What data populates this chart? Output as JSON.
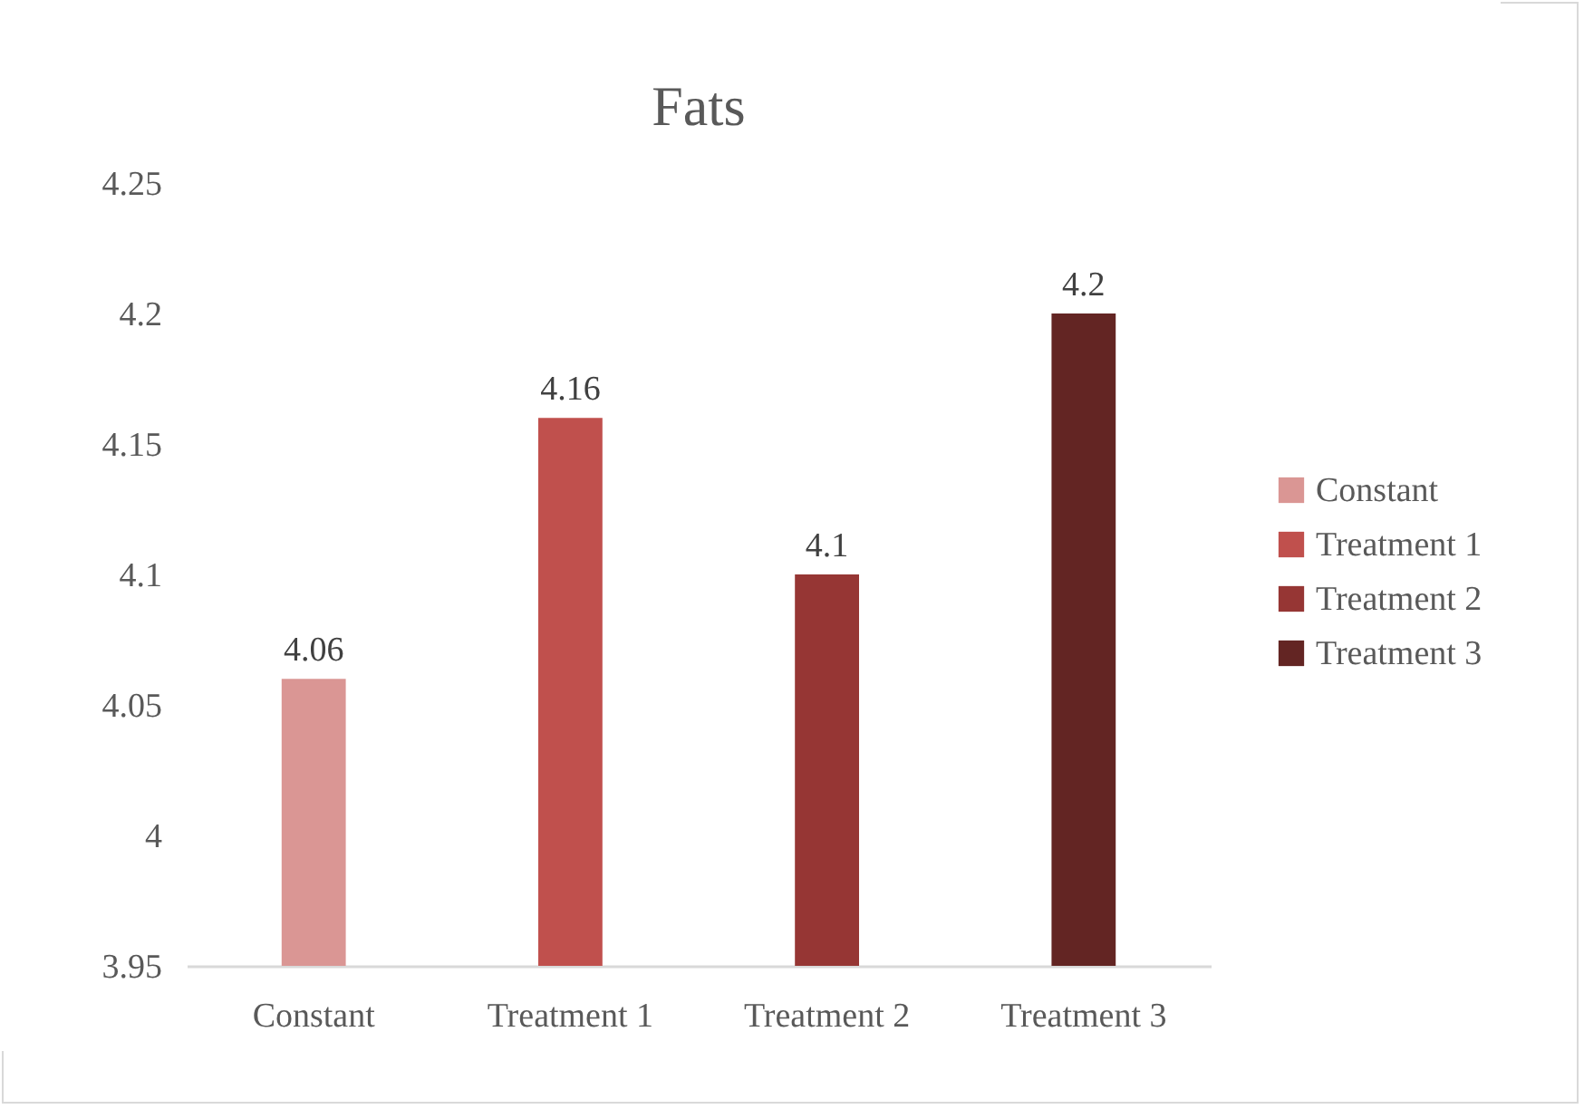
{
  "chart_data": {
    "type": "bar",
    "title": "Fats",
    "categories": [
      "Constant",
      "Treatment 1",
      "Treatment 2",
      "Treatment 3"
    ],
    "series": [
      {
        "name": "Constant",
        "color": "#da9694",
        "values": [
          4.06,
          null,
          null,
          null
        ]
      },
      {
        "name": "Treatment 1",
        "color": "#c0504d",
        "values": [
          null,
          4.16,
          null,
          null
        ]
      },
      {
        "name": "Treatment 2",
        "color": "#963634",
        "values": [
          null,
          null,
          4.1,
          null
        ]
      },
      {
        "name": "Treatment 3",
        "color": "#632523",
        "values": [
          null,
          null,
          null,
          4.2
        ]
      }
    ],
    "ylim": [
      3.95,
      4.25
    ],
    "yticks": [
      3.95,
      4,
      4.05,
      4.1,
      4.15,
      4.2,
      4.25
    ],
    "data_labels": true,
    "legend": "right"
  }
}
